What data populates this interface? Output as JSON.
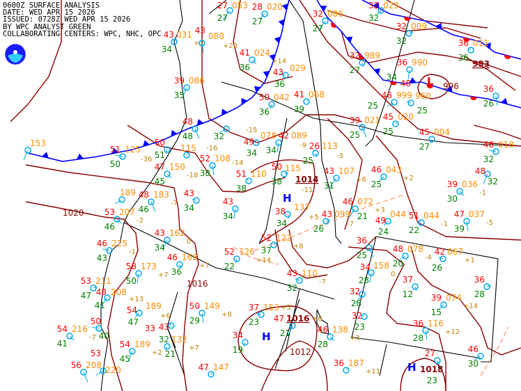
{
  "header": {
    "line1": "0600Z SURFACE ANALYSIS",
    "line2": "DATE: WED APR 15 2026",
    "line3": "ISSUED: 0728Z WED APR 15 2026",
    "line4": "BY WPC ANALYST GREEN",
    "line5": "COLLABORATING CENTERS: WPC, NHC, OPC"
  },
  "logo": {
    "text": "NOAA"
  },
  "colors": {
    "temperature": "#ff0000",
    "pressure": "#ff8c00",
    "dewpoint": "#008000",
    "tendency": "#c08000",
    "station": "#00a8e8",
    "isobar": "#8b0000",
    "cold_front": "#0000ff",
    "warm_front": "#ff0000",
    "high": "#0000ff",
    "low": "#ff0000",
    "trough": "#ff7f50",
    "border": "#000000"
  },
  "isobar_labels": [
    "1020",
    "1016",
    "1014",
    "1016",
    "1012",
    "1018",
    "993",
    "996"
  ],
  "pressure_centers": [
    {
      "type": "H",
      "label": "1014"
    },
    {
      "type": "H",
      "label": "1016"
    },
    {
      "type": "H",
      "label": "1018"
    },
    {
      "type": "L",
      "label": "996"
    }
  ],
  "stations": [
    {
      "t": "27",
      "p": "053",
      "d": "27",
      "tend": ""
    },
    {
      "t": "28",
      "p": "020",
      "d": "27",
      "tend": ""
    },
    {
      "t": "43",
      "p": "031",
      "d": "34",
      "tend": "+3"
    },
    {
      "t": "43",
      "p": "080",
      "d": "",
      "tend": "+20"
    },
    {
      "t": "41",
      "p": "024",
      "d": "36",
      "tend": "+14"
    },
    {
      "t": "43",
      "p": "029",
      "d": "36",
      "tend": ""
    },
    {
      "t": "39",
      "p": "086",
      "d": "35",
      "tend": ""
    },
    {
      "t": "50",
      "p": "042",
      "d": "36",
      "tend": ""
    },
    {
      "t": "41",
      "p": "068",
      "d": "39",
      "tend": ""
    },
    {
      "t": "48",
      "p": "",
      "d": "48",
      "tend": ""
    },
    {
      "t": "",
      "p": "",
      "d": "32",
      "tend": "-15"
    },
    {
      "t": "49",
      "p": "078",
      "d": "34",
      "tend": ""
    },
    {
      "t": "42",
      "p": "089",
      "d": "34",
      "tend": "-9"
    },
    {
      "t": "26",
      "p": "113",
      "d": "25",
      "tend": "-3"
    },
    {
      "t": "50",
      "p": "115",
      "d": "38",
      "tend": "-11"
    },
    {
      "t": "43",
      "p": "107",
      "d": "31",
      "tend": "+6"
    },
    {
      "t": "46",
      "p": "043",
      "d": "25",
      "tend": "+2"
    },
    {
      "t": "51",
      "p": "110",
      "d": "38",
      "tend": ""
    },
    {
      "t": "52",
      "p": "108",
      "d": "38",
      "tend": "-14"
    },
    {
      "t": "47",
      "p": "150",
      "d": "45",
      "tend": "-18"
    },
    {
      "t": "51",
      "p": "125",
      "d": "50",
      "tend": "-36"
    },
    {
      "t": "",
      "p": "153",
      "d": "",
      "tend": ""
    },
    {
      "t": "50",
      "p": "",
      "d": "51",
      "tend": ""
    },
    {
      "t": "",
      "p": "115",
      "d": "",
      "tend": "-16"
    },
    {
      "t": "48",
      "p": "183",
      "d": "46",
      "tend": "-7"
    },
    {
      "t": "",
      "p": "189",
      "d": "",
      "tend": ""
    },
    {
      "t": "43",
      "p": "",
      "d": "34",
      "tend": ""
    },
    {
      "t": "43",
      "p": "",
      "d": "34",
      "tend": ""
    },
    {
      "t": "38",
      "p": "137",
      "d": "34",
      "tend": "+5"
    },
    {
      "t": "43",
      "p": "099",
      "d": "26",
      "tend": "-7"
    },
    {
      "t": "46",
      "p": "072",
      "d": "21",
      "tend": "+3"
    },
    {
      "t": "49",
      "p": "044",
      "d": "24",
      "tend": ""
    },
    {
      "t": "51",
      "p": "044",
      "d": "22",
      "tend": "-1"
    },
    {
      "t": "47",
      "p": "037",
      "d": "39",
      "tend": "-5"
    },
    {
      "t": "39",
      "p": "036",
      "d": "30",
      "tend": "-1"
    },
    {
      "t": "46",
      "p": "018",
      "d": "32",
      "tend": ""
    },
    {
      "t": "48",
      "p": "",
      "d": "32",
      "tend": ""
    },
    {
      "t": "45",
      "p": "004",
      "d": "27",
      "tend": ""
    },
    {
      "t": "45",
      "p": "020",
      "d": "25",
      "tend": ""
    },
    {
      "t": "39",
      "p": "021",
      "d": "25",
      "tend": ""
    },
    {
      "t": "46",
      "p": "999",
      "d": "25",
      "tend": ""
    },
    {
      "t": "48",
      "p": "960",
      "d": "25",
      "tend": ""
    },
    {
      "t": "36",
      "p": "990",
      "d": "34",
      "tend": ""
    },
    {
      "t": "32",
      "p": "989",
      "d": "27",
      "tend": ""
    },
    {
      "t": "32",
      "p": "009",
      "d": "32",
      "tend": ""
    },
    {
      "t": "32",
      "p": "006",
      "d": "27",
      "tend": ""
    },
    {
      "t": "32",
      "p": "023",
      "d": "32",
      "tend": ""
    },
    {
      "t": "36",
      "p": "011",
      "d": "36",
      "tend": ""
    },
    {
      "t": "36",
      "p": "",
      "d": "26",
      "tend": ""
    },
    {
      "t": "53",
      "p": "207",
      "d": "46",
      "tend": "-2"
    },
    {
      "t": "46",
      "p": "225",
      "d": "43",
      "tend": "-1"
    },
    {
      "t": "43",
      "p": "162",
      "d": "34",
      "tend": "0"
    },
    {
      "t": "52",
      "p": "126",
      "d": "22",
      "tend": "+14"
    },
    {
      "t": "52",
      "p": "122",
      "d": "37",
      "tend": "+8"
    },
    {
      "t": "36",
      "p": "",
      "d": "25",
      "tend": ""
    },
    {
      "t": "48",
      "p": "078",
      "d": "20",
      "tend": "-4"
    },
    {
      "t": "42",
      "p": "067",
      "d": "26",
      "tend": "+1"
    },
    {
      "t": "34",
      "p": "158",
      "d": "28",
      "tend": "0"
    },
    {
      "t": "37",
      "p": "",
      "d": "12",
      "tend": ""
    },
    {
      "t": "36",
      "p": "",
      "d": "28",
      "tend": ""
    },
    {
      "t": "32",
      "p": "",
      "d": "28",
      "tend": ""
    },
    {
      "t": "39",
      "p": "074",
      "d": "15",
      "tend": "+14"
    },
    {
      "t": "32",
      "p": "",
      "d": "23",
      "tend": ""
    },
    {
      "t": "36",
      "p": "116",
      "d": "28",
      "tend": "+12"
    },
    {
      "t": "46",
      "p": "138",
      "d": "28",
      "tend": "+3"
    },
    {
      "t": "37",
      "p": "153",
      "d": "23",
      "tend": "+5"
    },
    {
      "t": "47",
      "p": "",
      "d": "21",
      "tend": "+6"
    },
    {
      "t": "34",
      "p": "",
      "d": "19",
      "tend": ""
    },
    {
      "t": "36",
      "p": "187",
      "d": "",
      "tend": "+11"
    },
    {
      "t": "27",
      "p": "",
      "d": "23",
      "tend": ""
    },
    {
      "t": "46",
      "p": "",
      "d": "30",
      "tend": ""
    },
    {
      "t": "43",
      "p": "110",
      "d": "32",
      "tend": "-7"
    },
    {
      "t": "58",
      "p": "173",
      "d": "50",
      "tend": "+7"
    },
    {
      "t": "46",
      "p": "168",
      "d": "36",
      "tend": "+7"
    },
    {
      "t": "53",
      "p": "211",
      "d": "47",
      "tend": ""
    },
    {
      "t": "48",
      "p": "208",
      "d": "41",
      "tend": "+13"
    },
    {
      "t": "54",
      "p": "189",
      "d": "47",
      "tend": "+6"
    },
    {
      "t": "43",
      "p": "",
      "d": "32",
      "tend": ""
    },
    {
      "t": "50",
      "p": "149",
      "d": "29",
      "tend": "+8"
    },
    {
      "t": "54",
      "p": "216",
      "d": "41",
      "tend": "-7"
    },
    {
      "t": "50",
      "p": "",
      "d": "40",
      "tend": ""
    },
    {
      "t": "54",
      "p": "189",
      "d": "45",
      "tend": "+2"
    },
    {
      "t": "33",
      "p": "132",
      "d": "21",
      "tend": "+7"
    },
    {
      "t": "47",
      "p": "147",
      "d": "",
      "tend": ""
    },
    {
      "t": "56",
      "p": "208",
      "d": "",
      "tend": ""
    },
    {
      "t": "53",
      "p": "220",
      "d": "",
      "tend": ""
    }
  ]
}
